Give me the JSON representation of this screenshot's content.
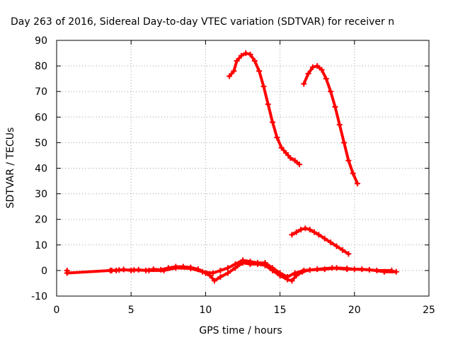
{
  "chart_data": {
    "type": "scatter",
    "title": "Day 263 of 2016, Sidereal Day-to-day VTEC variation (SDTVAR) for receiver n",
    "xlabel": "GPS time / hours",
    "ylabel": "SDTVAR / TECUs",
    "xlim": [
      0,
      25
    ],
    "ylim": [
      -10,
      90
    ],
    "xticks": [
      0,
      5,
      10,
      15,
      20,
      25
    ],
    "yticks": [
      -10,
      0,
      10,
      20,
      30,
      40,
      50,
      60,
      70,
      80,
      90
    ],
    "grid": true,
    "legend": "none",
    "series_color": "#ff0000",
    "series": [
      {
        "points": [
          [
            11.6,
            76
          ],
          [
            11.9,
            78
          ],
          [
            12.1,
            82
          ],
          [
            12.4,
            84
          ],
          [
            12.7,
            85
          ],
          [
            13.0,
            84.5
          ],
          [
            13.3,
            82
          ],
          [
            13.6,
            78
          ],
          [
            13.9,
            72
          ],
          [
            14.2,
            65
          ],
          [
            14.5,
            58
          ],
          [
            14.8,
            52
          ],
          [
            15.1,
            48
          ],
          [
            15.4,
            46
          ],
          [
            15.7,
            44
          ],
          [
            16.0,
            43
          ],
          [
            16.3,
            41.5
          ]
        ]
      },
      {
        "points": [
          [
            16.6,
            73
          ],
          [
            16.9,
            77
          ],
          [
            17.2,
            79.5
          ],
          [
            17.5,
            80
          ],
          [
            17.8,
            78.5
          ],
          [
            18.1,
            75
          ],
          [
            18.4,
            70
          ],
          [
            18.7,
            64
          ],
          [
            19.0,
            57
          ],
          [
            19.3,
            50
          ],
          [
            19.6,
            43
          ],
          [
            19.9,
            38
          ],
          [
            20.2,
            34
          ]
        ]
      },
      {
        "points": [
          [
            15.8,
            14
          ],
          [
            16.1,
            15
          ],
          [
            16.4,
            16
          ],
          [
            16.7,
            16.5
          ],
          [
            17.0,
            16
          ],
          [
            17.3,
            15
          ],
          [
            17.6,
            14
          ],
          [
            18.0,
            12.5
          ],
          [
            18.4,
            11
          ],
          [
            18.8,
            9.5
          ],
          [
            19.2,
            8
          ],
          [
            19.6,
            6.5
          ]
        ]
      },
      {
        "points": [
          [
            0.7,
            0
          ],
          [
            0.7,
            -1
          ],
          [
            3.6,
            0
          ],
          [
            4.0,
            0
          ],
          [
            4.5,
            0.4
          ],
          [
            5.0,
            0
          ],
          [
            5.5,
            0.3
          ],
          [
            6.0,
            0
          ],
          [
            6.5,
            0.5
          ],
          [
            7.0,
            0.3
          ],
          [
            7.5,
            1
          ],
          [
            8.0,
            1.5
          ],
          [
            8.5,
            1.5
          ],
          [
            9.0,
            1.2
          ],
          [
            9.5,
            0.5
          ],
          [
            10.0,
            -1
          ],
          [
            10.3,
            -2
          ],
          [
            10.6,
            -4
          ],
          [
            11.0,
            -2.5
          ],
          [
            11.5,
            -1
          ],
          [
            12.0,
            1
          ],
          [
            12.5,
            3
          ],
          [
            13.0,
            2.5
          ],
          [
            13.5,
            2.5
          ],
          [
            14.0,
            2
          ],
          [
            14.5,
            0
          ],
          [
            15.0,
            -2
          ],
          [
            15.5,
            -3.5
          ],
          [
            15.8,
            -4
          ],
          [
            16.1,
            -2
          ],
          [
            16.5,
            -0.5
          ],
          [
            17.0,
            0.2
          ],
          [
            18.0,
            0.5
          ],
          [
            18.8,
            1
          ],
          [
            19.5,
            0.8
          ],
          [
            20.0,
            0.5
          ],
          [
            21.0,
            0.3
          ],
          [
            22.0,
            -0.5
          ],
          [
            22.8,
            -0.5
          ]
        ]
      },
      {
        "points": [
          [
            3.7,
            0
          ],
          [
            4.2,
            0.2
          ],
          [
            5.2,
            0.2
          ],
          [
            6.2,
            0
          ],
          [
            7.2,
            0
          ],
          [
            8.0,
            1
          ],
          [
            9.0,
            0.8
          ],
          [
            9.8,
            -0.5
          ],
          [
            10.5,
            -1
          ],
          [
            11.0,
            0
          ],
          [
            11.5,
            1
          ],
          [
            12.0,
            2.5
          ],
          [
            12.5,
            4
          ],
          [
            13.0,
            3.5
          ],
          [
            13.5,
            3
          ],
          [
            14.0,
            3
          ],
          [
            14.5,
            1
          ],
          [
            15.0,
            -1
          ],
          [
            15.5,
            -2.5
          ],
          [
            16.0,
            -1
          ],
          [
            16.6,
            0
          ],
          [
            17.5,
            0.5
          ],
          [
            18.5,
            1
          ],
          [
            19.5,
            0.5
          ],
          [
            20.5,
            0.5
          ],
          [
            21.5,
            0
          ],
          [
            22.5,
            0
          ]
        ]
      }
    ]
  }
}
